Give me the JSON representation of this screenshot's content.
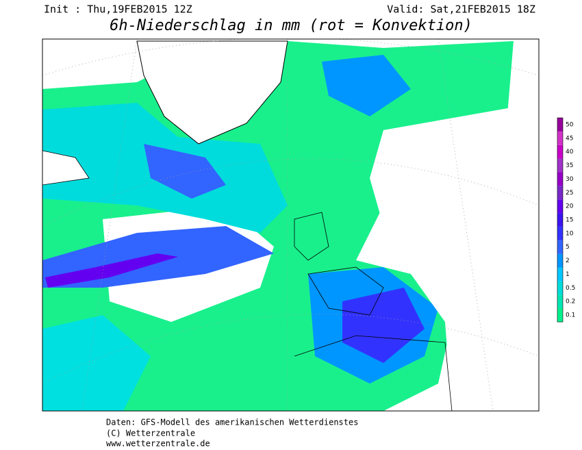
{
  "header": {
    "init": "Init : Thu,19FEB2015 12Z",
    "valid": "Valid: Sat,21FEB2015 18Z",
    "title": "6h-Niederschlag in mm (rot = Konvektion)"
  },
  "legend": {
    "levels": [
      0.1,
      0.2,
      0.5,
      1,
      2,
      5,
      10,
      15,
      20,
      25,
      30,
      35,
      40,
      45,
      50
    ],
    "colors": [
      "#00f08c",
      "#00e6b4",
      "#00dcdc",
      "#00c8ff",
      "#0096ff",
      "#3264ff",
      "#3232ff",
      "#3c14f0",
      "#6400f0",
      "#7828c8",
      "#9600c8",
      "#a032c8",
      "#c800c8",
      "#d232c8",
      "#96009b"
    ]
  },
  "footer": {
    "lines": [
      "Daten: GFS-Modell des amerikanischen Wetterdienstes",
      "(C) Wetterzentrale",
      "www.wetterzentrale.de"
    ]
  }
}
